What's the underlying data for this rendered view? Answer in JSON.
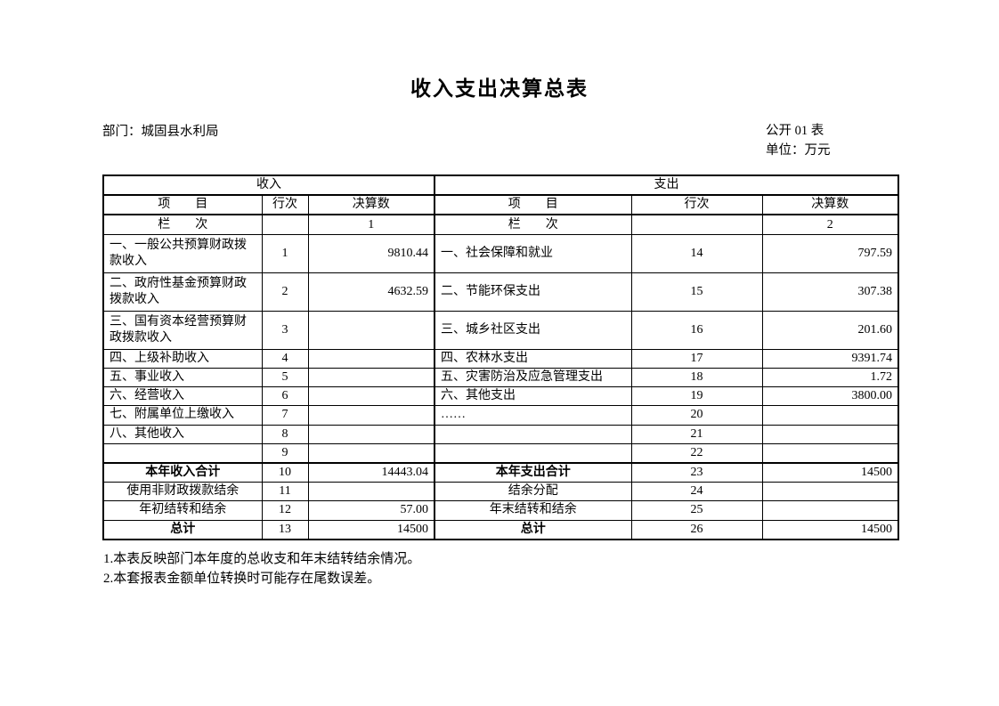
{
  "page": {
    "title": "收入支出决算总表",
    "department": "部门：城固县水利局",
    "table_code": "公开 01 表",
    "unit": "单位：万元",
    "notes": [
      "1.本表反映部门本年度的总收支和年末结转结余情况。",
      "2.本套报表金额单位转换时可能存在尾数误差。"
    ]
  },
  "table": {
    "income_header": "收入",
    "expense_header": "支出",
    "col_headers": {
      "item": "项　　目",
      "row_no": "行次",
      "amount": "决算数"
    },
    "index_row": {
      "label": "栏　　次",
      "income_col_no": "1",
      "expense_col_no": "2"
    },
    "rows": [
      {
        "tall": true,
        "bold": false,
        "center": false,
        "topline": false,
        "left": {
          "item": "一、一般公共预算财政拨款收入",
          "no": "1",
          "val": "9810.44"
        },
        "right": {
          "item": "一、社会保障和就业",
          "no": "14",
          "val": "797.59"
        }
      },
      {
        "tall": true,
        "bold": false,
        "center": false,
        "topline": false,
        "left": {
          "item": "二、政府性基金预算财政拨款收入",
          "no": "2",
          "val": "4632.59"
        },
        "right": {
          "item": "二、节能环保支出",
          "no": "15",
          "val": "307.38"
        }
      },
      {
        "tall": true,
        "bold": false,
        "center": false,
        "topline": false,
        "left": {
          "item": "三、国有资本经营预算财政拨款收入",
          "no": "3",
          "val": ""
        },
        "right": {
          "item": "三、城乡社区支出",
          "no": "16",
          "val": "201.60"
        }
      },
      {
        "tall": false,
        "bold": false,
        "center": false,
        "topline": false,
        "left": {
          "item": "四、上级补助收入",
          "no": "4",
          "val": ""
        },
        "right": {
          "item": "四、农林水支出",
          "no": "17",
          "val": "9391.74"
        }
      },
      {
        "tall": false,
        "bold": false,
        "center": false,
        "topline": false,
        "left": {
          "item": "五、事业收入",
          "no": "5",
          "val": ""
        },
        "right": {
          "item": "五、灾害防治及应急管理支出",
          "no": "18",
          "val": "1.72"
        }
      },
      {
        "tall": false,
        "bold": false,
        "center": false,
        "topline": false,
        "left": {
          "item": "六、经营收入",
          "no": "6",
          "val": ""
        },
        "right": {
          "item": "六、其他支出",
          "no": "19",
          "val": "3800.00"
        }
      },
      {
        "tall": false,
        "bold": false,
        "center": false,
        "topline": false,
        "left": {
          "item": "七、附属单位上缴收入",
          "no": "7",
          "val": ""
        },
        "right": {
          "item": "……",
          "no": "20",
          "val": ""
        }
      },
      {
        "tall": false,
        "bold": false,
        "center": false,
        "topline": false,
        "left": {
          "item": "八、其他收入",
          "no": "8",
          "val": ""
        },
        "right": {
          "item": "",
          "no": "21",
          "val": ""
        }
      },
      {
        "tall": false,
        "bold": false,
        "center": false,
        "topline": false,
        "left": {
          "item": "",
          "no": "9",
          "val": ""
        },
        "right": {
          "item": "",
          "no": "22",
          "val": ""
        }
      },
      {
        "tall": false,
        "bold": true,
        "center": true,
        "topline": true,
        "left": {
          "item": "本年收入合计",
          "no": "10",
          "val": "14443.04"
        },
        "right": {
          "item": "本年支出合计",
          "no": "23",
          "val": "14500"
        }
      },
      {
        "tall": false,
        "bold": false,
        "center": true,
        "topline": false,
        "left": {
          "item": "使用非财政拨款结余",
          "no": "11",
          "val": ""
        },
        "right": {
          "item": "结余分配",
          "no": "24",
          "val": ""
        }
      },
      {
        "tall": false,
        "bold": false,
        "center": true,
        "topline": false,
        "left": {
          "item": "年初结转和结余",
          "no": "12",
          "val": "57.00"
        },
        "right": {
          "item": "年末结转和结余",
          "no": "25",
          "val": ""
        }
      },
      {
        "tall": false,
        "bold": true,
        "center": true,
        "topline": false,
        "left": {
          "item": "总计",
          "no": "13",
          "val": "14500"
        },
        "right": {
          "item": "总计",
          "no": "26",
          "val": "14500"
        }
      }
    ]
  }
}
